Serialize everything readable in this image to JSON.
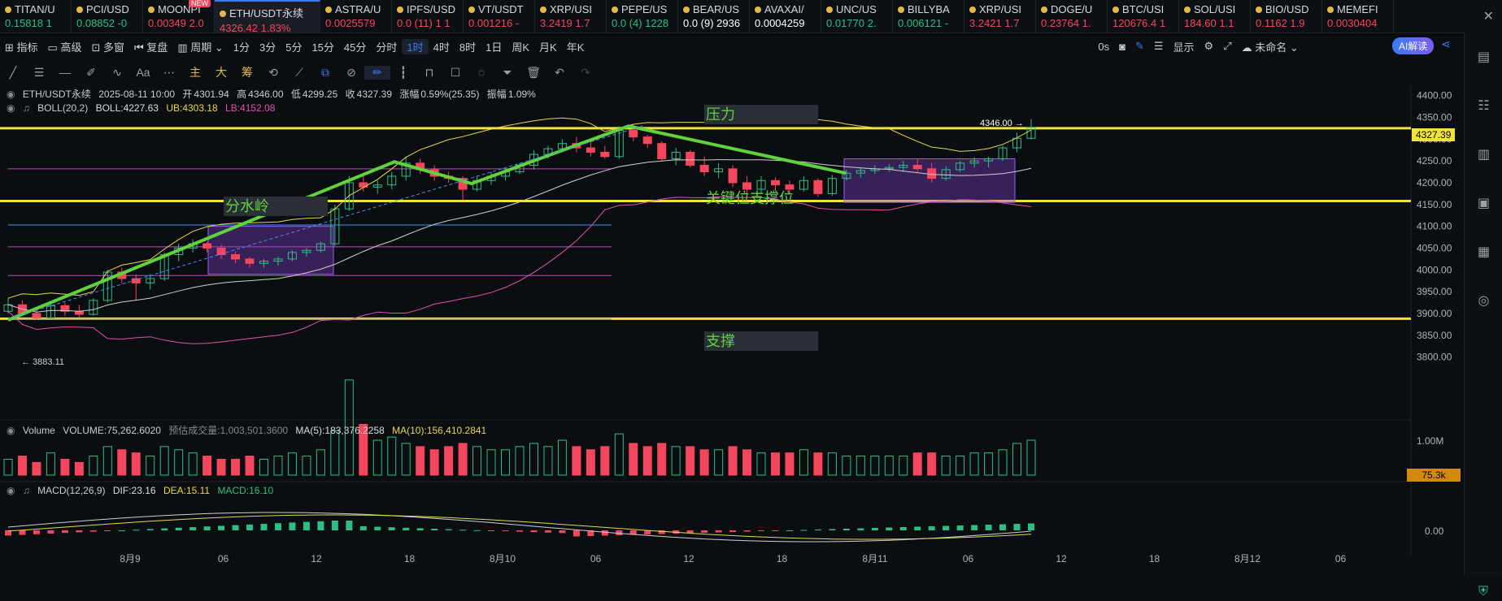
{
  "tabs": [
    {
      "name": "TITAN/U",
      "price": "0.15818 1",
      "dir": "up"
    },
    {
      "name": "PCI/USD",
      "price": "0.08852 -0",
      "dir": "up"
    },
    {
      "name": "MOONPI",
      "price": "0.00349 2.0",
      "dir": "down",
      "badge": "NEW"
    },
    {
      "name": "ETH/USDT永续",
      "price": "4326.42 1.83%",
      "dir": "down",
      "active": true
    },
    {
      "name": "ASTRA/U",
      "price": "0.0025579",
      "dir": "down"
    },
    {
      "name": "IPFS/USD",
      "price": "0.0 (11) 1 1",
      "dir": "down"
    },
    {
      "name": "VT/USDT",
      "price": "0.001216 -",
      "dir": "down"
    },
    {
      "name": "XRP/USI",
      "price": "3.2419 1.7",
      "dir": "down"
    },
    {
      "name": "PEPE/US",
      "price": "0.0 (4) 1228",
      "dir": "up"
    },
    {
      "name": "BEAR/US",
      "price": "0.0 (9) 2936",
      "dir": "wh"
    },
    {
      "name": "AVAXAI/",
      "price": "0.0004259",
      "dir": "wh"
    },
    {
      "name": "UNC/US",
      "price": "0.01770 2.",
      "dir": "up"
    },
    {
      "name": "BILLYBA",
      "price": "0.006121 -",
      "dir": "up"
    },
    {
      "name": "XRP/USI",
      "price": "3.2421 1.7",
      "dir": "down"
    },
    {
      "name": "DOGE/U",
      "price": "0.23764 1.",
      "dir": "down"
    },
    {
      "name": "BTC/USI",
      "price": "120676.4 1",
      "dir": "down"
    },
    {
      "name": "SOL/USI",
      "price": "184.60 1.1",
      "dir": "down"
    },
    {
      "name": "BIO/USD",
      "price": "0.1162 1.9",
      "dir": "down"
    },
    {
      "name": "MEMEFI",
      "price": "0.0030404",
      "dir": "down"
    }
  ],
  "toolbar": {
    "indicators": "指标",
    "advanced": "高级",
    "multi_window": "多窗",
    "replay": "复盘",
    "period": "周期",
    "intervals": [
      "1分",
      "3分",
      "5分",
      "15分",
      "45分",
      "分时",
      "1时",
      "4时",
      "8时",
      "1日",
      "周K",
      "月K",
      "年K"
    ],
    "active_interval": "1时",
    "countdown": "0s",
    "display": "显示",
    "unnamed": "未命名",
    "ai": "AI解读"
  },
  "drawing_tools": {
    "main": "主",
    "big": "大",
    "chip": "筹",
    "text": "Aa"
  },
  "legend": {
    "symbol": "ETH/USDT永续",
    "datetime": "2025-08-11 10:00",
    "open_label": "开",
    "open": "4301.94",
    "high_label": "高",
    "high": "4346.00",
    "low_label": "低",
    "low": "4299.25",
    "close_label": "收",
    "close": "4327.39",
    "change_label": "涨幅",
    "change": "0.59%(25.35)",
    "amp_label": "振幅",
    "amp": "1.09%",
    "boll_name": "BOLL(20,2)",
    "boll": "BOLL:4227.63",
    "ub": "UB:4303.18",
    "lb": "LB:4152.08"
  },
  "volume_legend": {
    "name": "Volume",
    "vol": "VOLUME:75,262.6020",
    "est": "预估成交量:1,003,501.3600",
    "ma5": "MA(5):183,376.2258",
    "ma10": "MA(10):156,410.2841"
  },
  "macd_legend": {
    "name": "MACD(12,26,9)",
    "dif": "DIF:23.16",
    "dea": "DEA:15.11",
    "macd": "MACD:16.10"
  },
  "annotations": {
    "pressure": "压力",
    "watershed": "分水岭",
    "key_support": "关键位支撑位",
    "support": "支撑"
  },
  "price_labels": {
    "high_marker": "4346.00",
    "current": "4327.39",
    "low_marker": "3883.11",
    "vol_current": "75.3k",
    "vol_axis": "1.00M",
    "macd_axis": "0.00"
  },
  "colors": {
    "up": "#2fbd85",
    "down": "#f6465d",
    "accent": "#3b7cf5",
    "yellow": "#f3e23a",
    "green_line": "#5fd23c"
  },
  "chart_data": {
    "type": "candlestick",
    "y_ticks": [
      "4400.00",
      "4350.00",
      "4300.00",
      "4250.00",
      "4200.00",
      "4150.00",
      "4100.00",
      "4050.00",
      "4000.00",
      "3950.00",
      "3900.00",
      "3850.00",
      "3800.00"
    ],
    "ylim": [
      3790,
      4405
    ],
    "x_ticks": [
      "8月9",
      "06",
      "12",
      "18",
      "8月10",
      "06",
      "12",
      "18",
      "8月11",
      "06",
      "12",
      "18",
      "8月12",
      "06"
    ],
    "horizontal_levels": [
      4325,
      4158,
      3888
    ],
    "candles": [
      [
        3905,
        3935,
        3900,
        3920
      ],
      [
        3920,
        3930,
        3895,
        3900
      ],
      [
        3900,
        3915,
        3885,
        3890
      ],
      [
        3890,
        3925,
        3888,
        3918
      ],
      [
        3918,
        3925,
        3895,
        3905
      ],
      [
        3905,
        3920,
        3890,
        3898
      ],
      [
        3898,
        3935,
        3895,
        3930
      ],
      [
        3930,
        4000,
        3925,
        3995
      ],
      [
        3995,
        4005,
        3970,
        3980
      ],
      [
        3980,
        3990,
        3930,
        3970
      ],
      [
        3970,
        3990,
        3955,
        3980
      ],
      [
        3980,
        4040,
        3975,
        4035
      ],
      [
        4035,
        4060,
        4020,
        4050
      ],
      [
        4050,
        4070,
        4040,
        4060
      ],
      [
        4060,
        4065,
        4040,
        4050
      ],
      [
        4050,
        4058,
        4025,
        4035
      ],
      [
        4035,
        4042,
        4015,
        4025
      ],
      [
        4025,
        4030,
        4005,
        4015
      ],
      [
        4015,
        4025,
        4005,
        4020
      ],
      [
        4020,
        4030,
        4010,
        4025
      ],
      [
        4025,
        4045,
        4020,
        4040
      ],
      [
        4040,
        4050,
        4030,
        4045
      ],
      [
        4045,
        4065,
        4040,
        4060
      ],
      [
        4060,
        4150,
        4055,
        4140
      ],
      [
        4140,
        4215,
        4135,
        4200
      ],
      [
        4200,
        4215,
        4180,
        4190
      ],
      [
        4190,
        4205,
        4175,
        4195
      ],
      [
        4195,
        4225,
        4185,
        4215
      ],
      [
        4215,
        4260,
        4205,
        4245
      ],
      [
        4245,
        4255,
        4220,
        4230
      ],
      [
        4230,
        4240,
        4205,
        4215
      ],
      [
        4215,
        4225,
        4200,
        4210
      ],
      [
        4210,
        4215,
        4160,
        4185
      ],
      [
        4185,
        4215,
        4180,
        4205
      ],
      [
        4205,
        4225,
        4195,
        4215
      ],
      [
        4215,
        4235,
        4205,
        4225
      ],
      [
        4225,
        4245,
        4220,
        4240
      ],
      [
        4240,
        4275,
        4230,
        4265
      ],
      [
        4265,
        4285,
        4255,
        4278
      ],
      [
        4278,
        4300,
        4270,
        4290
      ],
      [
        4290,
        4305,
        4270,
        4280
      ],
      [
        4280,
        4295,
        4260,
        4270
      ],
      [
        4270,
        4285,
        4255,
        4260
      ],
      [
        4260,
        4330,
        4255,
        4320
      ],
      [
        4320,
        4335,
        4295,
        4305
      ],
      [
        4305,
        4310,
        4280,
        4290
      ],
      [
        4290,
        4295,
        4250,
        4255
      ],
      [
        4255,
        4280,
        4240,
        4270
      ],
      [
        4270,
        4275,
        4235,
        4240
      ],
      [
        4240,
        4260,
        4215,
        4225
      ],
      [
        4225,
        4245,
        4210,
        4232
      ],
      [
        4232,
        4240,
        4190,
        4200
      ],
      [
        4200,
        4215,
        4170,
        4185
      ],
      [
        4185,
        4215,
        4175,
        4205
      ],
      [
        4205,
        4212,
        4180,
        4195
      ],
      [
        4195,
        4205,
        4175,
        4185
      ],
      [
        4185,
        4215,
        4180,
        4205
      ],
      [
        4205,
        4210,
        4168,
        4175
      ],
      [
        4175,
        4218,
        4170,
        4210
      ],
      [
        4210,
        4230,
        4205,
        4222
      ],
      [
        4222,
        4235,
        4212,
        4228
      ],
      [
        4228,
        4240,
        4220,
        4232
      ],
      [
        4232,
        4242,
        4225,
        4235
      ],
      [
        4235,
        4250,
        4225,
        4240
      ],
      [
        4240,
        4255,
        4225,
        4232
      ],
      [
        4232,
        4245,
        4200,
        4210
      ],
      [
        4210,
        4238,
        4205,
        4230
      ],
      [
        4230,
        4250,
        4225,
        4245
      ],
      [
        4245,
        4258,
        4235,
        4250
      ],
      [
        4250,
        4260,
        4235,
        4255
      ],
      [
        4255,
        4285,
        4250,
        4280
      ],
      [
        4280,
        4315,
        4270,
        4302
      ],
      [
        4302,
        4346,
        4299,
        4327
      ]
    ],
    "volumes": [
      5,
      6,
      4,
      7,
      5,
      4,
      6,
      9,
      8,
      7,
      6,
      9,
      8,
      7,
      6,
      5,
      5,
      6,
      5,
      6,
      7,
      6,
      8,
      14,
      30,
      16,
      11,
      12,
      10,
      9,
      8,
      9,
      10,
      9,
      8,
      8,
      9,
      10,
      9,
      11,
      9,
      8,
      9,
      13,
      10,
      9,
      10,
      9,
      9,
      8,
      8,
      9,
      8,
      7,
      7,
      7,
      8,
      7,
      7,
      6,
      6,
      6,
      6,
      6,
      7,
      7,
      6,
      6,
      7,
      7,
      8,
      10,
      11
    ]
  }
}
